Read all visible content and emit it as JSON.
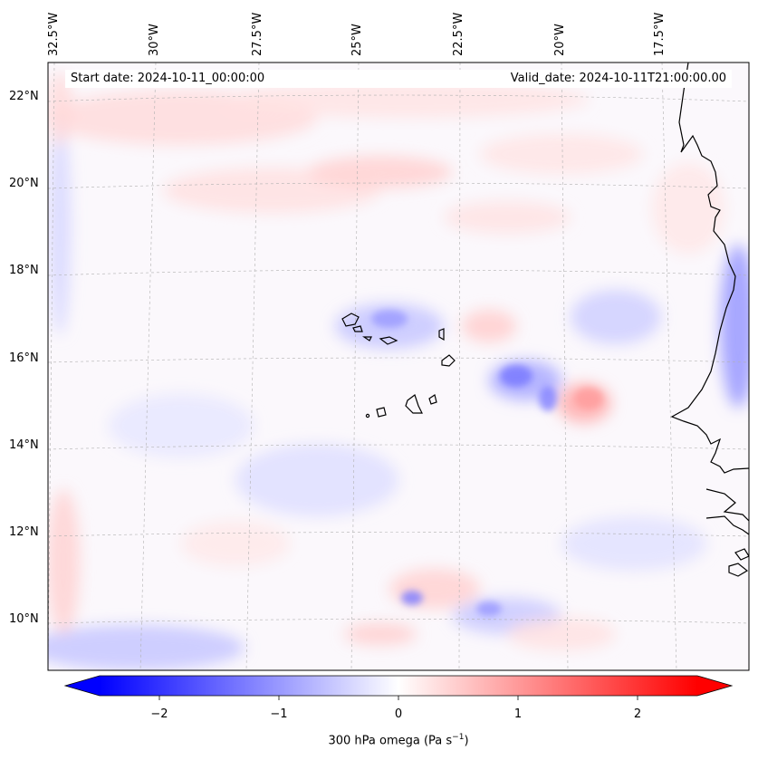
{
  "header": {
    "start_date": "Start date: 2024-10-11_00:00:00",
    "valid_date": "Valid_date: 2024-10-11T21:00:00.00"
  },
  "map": {
    "lon_labels": [
      "32.5°W",
      "30°W",
      "27.5°W",
      "25°W",
      "22.5°W",
      "20°W",
      "17.5°W"
    ],
    "lat_labels": [
      "22°N",
      "20°N",
      "18°N",
      "16°N",
      "14°N",
      "12°N",
      "10°N"
    ]
  },
  "colorbar": {
    "ticks": [
      "−2",
      "−1",
      "0",
      "1",
      "2"
    ],
    "tick_values": [
      -2,
      -1,
      0,
      1,
      2
    ],
    "vmin": -2.5,
    "vmax": 2.5,
    "label_prefix": "300 hPa omega (Pa s",
    "label_exp": "−1",
    "label_suffix": ")",
    "low_color": "#0000ff",
    "mid_color": "#ffffff",
    "high_color": "#ff0000"
  }
}
